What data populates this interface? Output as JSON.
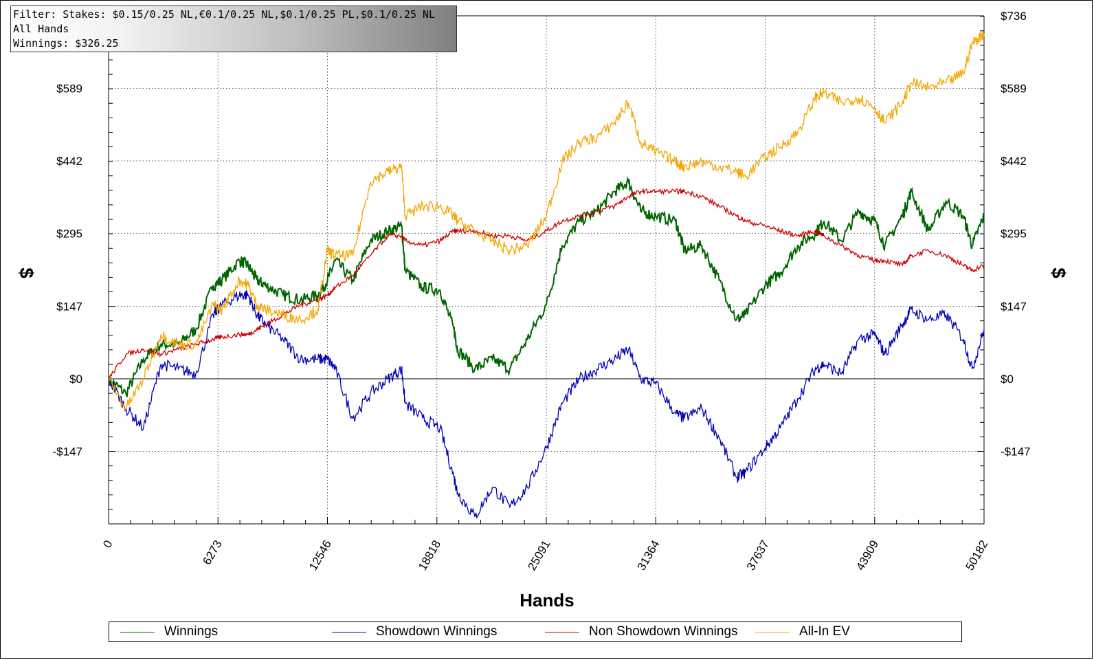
{
  "filter_box": {
    "line1": "Filter: Stakes: $0.15/0.25 NL,€0.1/0.25 NL,$0.1/0.25 PL,$0.1/0.25 NL",
    "line2": "All Hands",
    "line3": "Winnings: $326.25"
  },
  "chart_data": {
    "type": "line",
    "title": "",
    "xlabel": "Hands",
    "ylabel": "$",
    "ylabel_right": "$",
    "xlim": [
      0,
      50182
    ],
    "ylim": [
      -294,
      736
    ],
    "x_ticks": [
      0,
      6273,
      12546,
      18818,
      25091,
      31364,
      37637,
      43909,
      50182
    ],
    "x_tick_labels": [
      "0",
      "6273",
      "12546",
      "18818",
      "25091",
      "31364",
      "37637",
      "43909",
      "50182"
    ],
    "y_ticks": [
      -147,
      0,
      147,
      295,
      442,
      589,
      736
    ],
    "y_tick_labels": [
      "-$147",
      "$0",
      "$147",
      "$295",
      "$442",
      "$589",
      "$736"
    ],
    "grid": true,
    "legend_position": "bottom",
    "x": [
      0,
      1000,
      2000,
      3000,
      4000,
      5000,
      6000,
      6500,
      7500,
      8000,
      8500,
      9000,
      10000,
      11000,
      12000,
      12546,
      13000,
      14000,
      15000,
      16000,
      16800,
      17000,
      18000,
      19000,
      19800,
      20000,
      21000,
      22000,
      23000,
      24000,
      25091,
      26000,
      27000,
      28000,
      29000,
      29800,
      30500,
      31364,
      32500,
      33000,
      34000,
      35000,
      36000,
      36500,
      37637,
      38500,
      39500,
      40500,
      41000,
      42000,
      43000,
      43909,
      44500,
      45500,
      46000,
      47000,
      48000,
      49000,
      49500,
      50182
    ],
    "series": [
      {
        "name": "Winnings",
        "color": "#006400",
        "values": [
          0,
          -30,
          40,
          70,
          70,
          100,
          190,
          200,
          240,
          230,
          200,
          190,
          170,
          160,
          170,
          200,
          240,
          200,
          280,
          300,
          310,
          220,
          185,
          180,
          100,
          60,
          20,
          40,
          20,
          80,
          150,
          270,
          320,
          340,
          380,
          400,
          340,
          330,
          320,
          260,
          270,
          200,
          120,
          130,
          190,
          215,
          270,
          295,
          320,
          280,
          340,
          320,
          270,
          330,
          380,
          300,
          360,
          330,
          270,
          330
        ]
      },
      {
        "name": "Showdown Winnings",
        "color": "#0000b4",
        "values": [
          0,
          -60,
          -100,
          30,
          20,
          10,
          130,
          150,
          170,
          170,
          130,
          110,
          80,
          40,
          40,
          40,
          20,
          -80,
          -30,
          0,
          20,
          -50,
          -80,
          -100,
          -200,
          -230,
          -280,
          -220,
          -260,
          -220,
          -140,
          -50,
          0,
          20,
          40,
          60,
          0,
          -10,
          -70,
          -80,
          -60,
          -120,
          -200,
          -190,
          -140,
          -100,
          -40,
          20,
          30,
          10,
          80,
          90,
          50,
          110,
          140,
          120,
          130,
          80,
          20,
          100
        ]
      },
      {
        "name": "Non Showdown Winnings",
        "color": "#cc0000",
        "values": [
          0,
          50,
          60,
          50,
          60,
          70,
          80,
          85,
          90,
          90,
          100,
          110,
          130,
          150,
          160,
          170,
          185,
          210,
          250,
          290,
          290,
          280,
          270,
          280,
          300,
          300,
          300,
          290,
          290,
          280,
          300,
          320,
          330,
          340,
          350,
          370,
          380,
          380,
          380,
          380,
          370,
          350,
          330,
          320,
          310,
          300,
          290,
          300,
          290,
          270,
          250,
          240,
          240,
          230,
          250,
          260,
          250,
          230,
          220,
          230
        ]
      },
      {
        "name": "All-In EV",
        "color": "#f5a500",
        "values": [
          0,
          -60,
          0,
          90,
          70,
          70,
          150,
          140,
          200,
          190,
          150,
          140,
          130,
          120,
          140,
          260,
          250,
          250,
          400,
          420,
          430,
          330,
          350,
          350,
          330,
          320,
          300,
          280,
          260,
          270,
          330,
          440,
          480,
          490,
          520,
          560,
          480,
          460,
          440,
          430,
          440,
          430,
          420,
          410,
          450,
          470,
          500,
          570,
          580,
          560,
          570,
          550,
          520,
          560,
          600,
          590,
          600,
          620,
          680,
          700
        ]
      }
    ]
  }
}
